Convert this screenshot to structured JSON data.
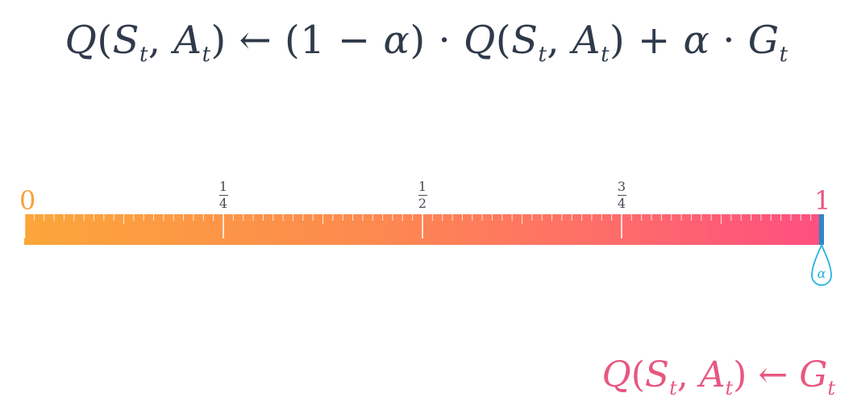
{
  "formula_top": {
    "q": "Q",
    "s": "S",
    "t": "t",
    "a": "A",
    "arrow": "←",
    "one": "1",
    "minus": "−",
    "alpha": "α",
    "dot": "·",
    "plus": "+",
    "g": "G"
  },
  "scale": {
    "start_label": "0",
    "end_label": "1",
    "marks": [
      {
        "numerator": "1",
        "denominator": "4",
        "value": 0.25
      },
      {
        "numerator": "1",
        "denominator": "2",
        "value": 0.5
      },
      {
        "numerator": "3",
        "denominator": "4",
        "value": 0.75
      }
    ],
    "alpha_value": 1.0,
    "alpha_symbol": "α",
    "colors": {
      "start": "#fba63a",
      "end": "#fe4f80",
      "handle": "#2f86c6",
      "knob": "#27b2e0"
    }
  },
  "formula_bottom": {
    "q": "Q",
    "s": "S",
    "t": "t",
    "a": "A",
    "arrow": "←",
    "g": "G"
  }
}
